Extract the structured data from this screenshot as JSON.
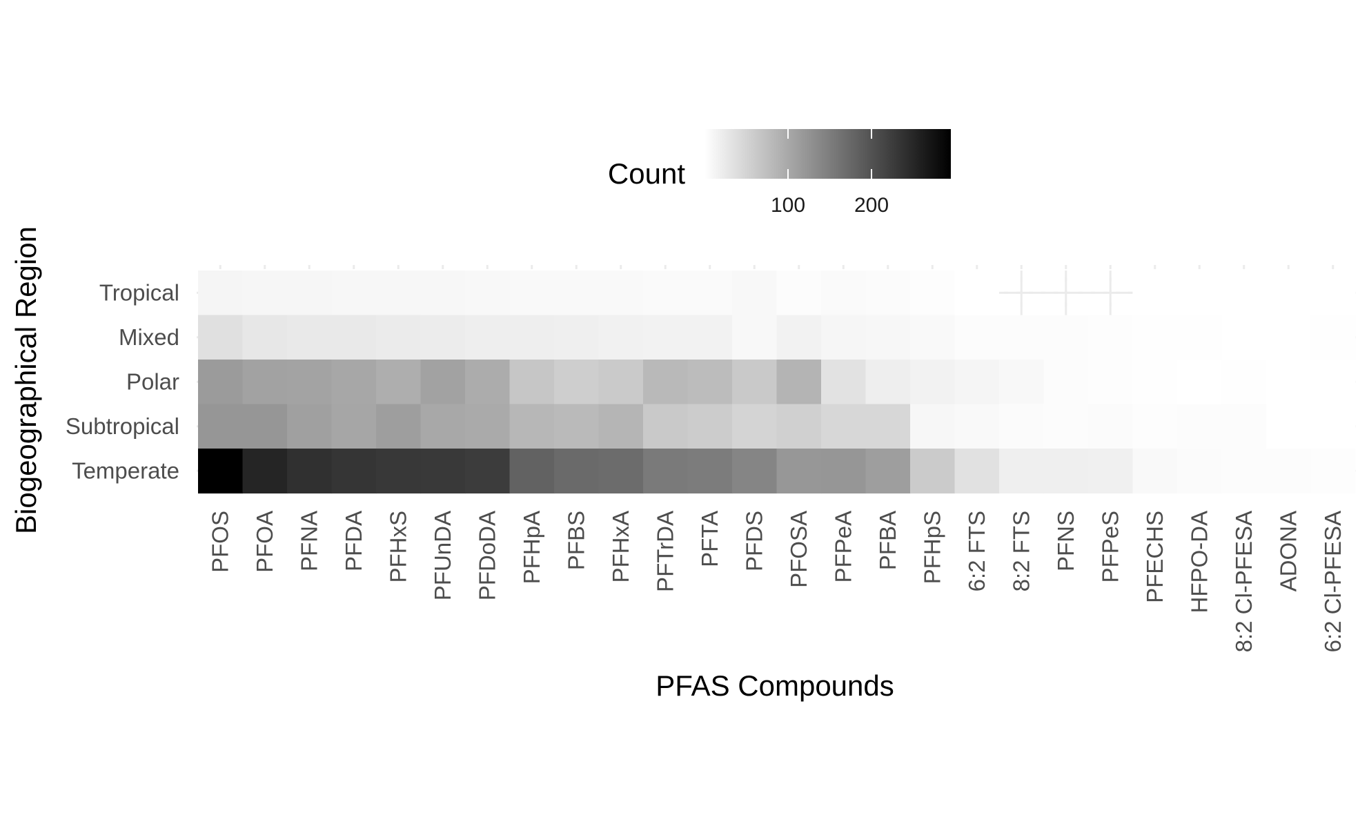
{
  "chart_data": {
    "type": "heatmap",
    "title": "",
    "xlabel": "PFAS Compounds",
    "ylabel": "Biogeographical Region",
    "x_categories": [
      "PFOS",
      "PFOA",
      "PFNA",
      "PFDA",
      "PFHxS",
      "PFUnDA",
      "PFDoDA",
      "PFHpA",
      "PFBS",
      "PFHxA",
      "PFTrDA",
      "PFTA",
      "PFDS",
      "PFOSA",
      "PFPeA",
      "PFBA",
      "PFHpS",
      "6:2 FTS",
      "8:2 FTS",
      "PFNS",
      "PFPeS",
      "PFECHS",
      "HFPO-DA",
      "8:2 Cl-PFESA",
      "ADONA",
      "6:2 Cl-PFESA"
    ],
    "y_categories": [
      "Tropical",
      "Mixed",
      "Polar",
      "Subtropical",
      "Temperate"
    ],
    "values": [
      [
        12,
        10,
        10,
        9,
        9,
        9,
        8,
        7,
        7,
        7,
        6,
        6,
        8,
        3,
        6,
        5,
        2,
        0,
        null,
        null,
        null,
        0,
        0,
        0,
        0,
        0
      ],
      [
        36,
        28,
        25,
        25,
        23,
        22,
        20,
        20,
        19,
        16,
        15,
        15,
        8,
        15,
        10,
        9,
        7,
        4,
        3,
        3,
        2,
        1,
        1,
        0,
        0,
        1
      ],
      [
        116,
        108,
        106,
        102,
        94,
        108,
        96,
        66,
        57,
        61,
        81,
        77,
        63,
        87,
        33,
        20,
        15,
        12,
        8,
        4,
        2,
        1,
        0,
        1,
        0,
        0
      ],
      [
        121,
        121,
        110,
        103,
        112,
        101,
        98,
        83,
        80,
        86,
        62,
        59,
        50,
        54,
        46,
        46,
        9,
        7,
        5,
        4,
        5,
        2,
        4,
        3,
        0,
        0
      ],
      [
        295,
        252,
        240,
        234,
        230,
        229,
        226,
        182,
        172,
        170,
        154,
        152,
        141,
        120,
        121,
        112,
        60,
        35,
        18,
        18,
        17,
        7,
        5,
        4,
        4,
        2
      ]
    ],
    "colorscale": {
      "low": "#ffffff",
      "high": "#000000",
      "min": 0,
      "max": 295
    },
    "legend": {
      "title": "Count",
      "ticks": [
        100,
        200
      ],
      "position": "top"
    },
    "missing_color": "#ffffff",
    "grid": true
  }
}
